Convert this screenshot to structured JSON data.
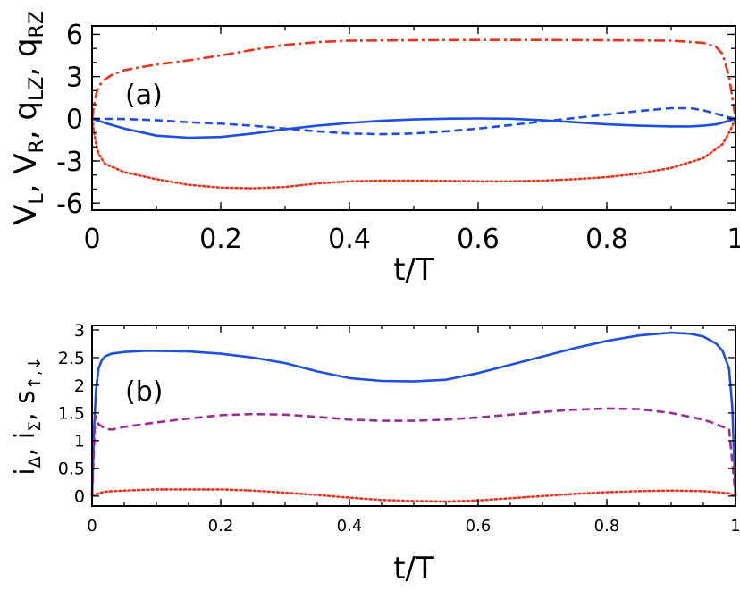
{
  "chart_data": [
    {
      "type": "line",
      "panel_label": "(a)",
      "xlabel": "t/T",
      "ylabel_parts": [
        "V",
        "L",
        ", V",
        "R",
        ", q",
        "LZ",
        ", q",
        "RZ"
      ],
      "xlim": [
        0,
        1
      ],
      "ylim": [
        -6.5,
        6.6
      ],
      "xticks": [
        0,
        0.2,
        0.4,
        0.6,
        0.8,
        1
      ],
      "xtick_labels": [
        "0",
        "0.2",
        "0.4",
        "0.6",
        "0.8",
        "1"
      ],
      "yticks": [
        -6,
        -3,
        0,
        3,
        6
      ],
      "ytick_labels": [
        "-6",
        "-3",
        "0",
        "3",
        "6"
      ],
      "series": [
        {
          "name": "red dash-dot (upper)",
          "color": "#e8341c",
          "style": "dashdot",
          "x": [
            0,
            0.005,
            0.01,
            0.02,
            0.03,
            0.05,
            0.08,
            0.1,
            0.15,
            0.2,
            0.25,
            0.3,
            0.35,
            0.4,
            0.5,
            0.6,
            0.7,
            0.8,
            0.9,
            0.95,
            0.97,
            0.98,
            0.99,
            0.995,
            1
          ],
          "y": [
            0,
            1.5,
            2.3,
            2.8,
            3.1,
            3.45,
            3.7,
            3.85,
            4.15,
            4.5,
            4.9,
            5.25,
            5.45,
            5.55,
            5.58,
            5.6,
            5.6,
            5.58,
            5.55,
            5.4,
            5.1,
            4.6,
            3.0,
            1.5,
            0
          ]
        },
        {
          "name": "red dotted (lower)",
          "color": "#e8341c",
          "style": "dotted",
          "x": [
            0,
            0.005,
            0.01,
            0.02,
            0.05,
            0.1,
            0.15,
            0.2,
            0.25,
            0.3,
            0.35,
            0.4,
            0.45,
            0.5,
            0.55,
            0.6,
            0.65,
            0.7,
            0.75,
            0.8,
            0.85,
            0.9,
            0.95,
            0.98,
            0.99,
            1
          ],
          "y": [
            0,
            -1.5,
            -2.5,
            -3.2,
            -3.8,
            -4.3,
            -4.7,
            -4.9,
            -4.95,
            -4.85,
            -4.6,
            -4.45,
            -4.4,
            -4.4,
            -4.42,
            -4.45,
            -4.45,
            -4.4,
            -4.3,
            -4.15,
            -3.9,
            -3.5,
            -2.8,
            -1.8,
            -1.0,
            0
          ]
        },
        {
          "name": "blue solid",
          "color": "#1f4fe0",
          "style": "solid",
          "x": [
            0,
            0.02,
            0.05,
            0.1,
            0.15,
            0.2,
            0.25,
            0.3,
            0.35,
            0.4,
            0.45,
            0.5,
            0.55,
            0.6,
            0.65,
            0.7,
            0.75,
            0.8,
            0.85,
            0.9,
            0.93,
            0.95,
            0.97,
            0.99,
            1
          ],
          "y": [
            0,
            -0.3,
            -0.7,
            -1.2,
            -1.35,
            -1.3,
            -1.05,
            -0.75,
            -0.5,
            -0.3,
            -0.15,
            -0.05,
            0,
            0.02,
            0,
            -0.1,
            -0.25,
            -0.4,
            -0.5,
            -0.55,
            -0.55,
            -0.5,
            -0.4,
            -0.15,
            0
          ]
        },
        {
          "name": "blue dashed",
          "color": "#1f4fe0",
          "style": "dashed",
          "x": [
            0,
            0.05,
            0.1,
            0.15,
            0.2,
            0.25,
            0.3,
            0.35,
            0.4,
            0.45,
            0.5,
            0.55,
            0.6,
            0.65,
            0.7,
            0.75,
            0.8,
            0.85,
            0.9,
            0.93,
            0.95,
            0.97,
            0.99,
            1
          ],
          "y": [
            0,
            -0.02,
            -0.1,
            -0.25,
            -0.35,
            -0.5,
            -0.7,
            -0.9,
            -1.05,
            -1.1,
            -1.05,
            -0.9,
            -0.7,
            -0.45,
            -0.2,
            0.05,
            0.3,
            0.55,
            0.75,
            0.75,
            0.6,
            0.35,
            0.1,
            0
          ]
        }
      ]
    },
    {
      "type": "line",
      "panel_label": "(b)",
      "xlabel": "t/T",
      "ylabel_parts": [
        "i",
        "Δ",
        ", i",
        "Σ",
        ", s",
        "↑,↓"
      ],
      "xlim": [
        0,
        1
      ],
      "ylim": [
        -0.18,
        3.08
      ],
      "xticks": [
        0,
        0.2,
        0.4,
        0.6,
        0.8,
        1
      ],
      "xtick_labels": [
        "0",
        "0.2",
        "0.4",
        "0.6",
        "0.8",
        "1"
      ],
      "yticks": [
        0,
        0.5,
        1,
        1.5,
        2,
        2.5,
        3
      ],
      "ytick_labels": [
        "0",
        "0.5",
        "1",
        "1.5",
        "2",
        "2.5",
        "3"
      ],
      "series": [
        {
          "name": "blue solid",
          "color": "#1f4fe0",
          "style": "solid",
          "x": [
            0,
            0.003,
            0.006,
            0.01,
            0.015,
            0.02,
            0.03,
            0.05,
            0.08,
            0.1,
            0.15,
            0.2,
            0.25,
            0.3,
            0.35,
            0.4,
            0.45,
            0.5,
            0.55,
            0.6,
            0.65,
            0.7,
            0.75,
            0.8,
            0.85,
            0.9,
            0.93,
            0.95,
            0.97,
            0.98,
            0.99,
            0.995,
            1
          ],
          "y": [
            0,
            1.2,
            1.9,
            2.3,
            2.45,
            2.52,
            2.57,
            2.6,
            2.62,
            2.62,
            2.61,
            2.57,
            2.5,
            2.4,
            2.25,
            2.13,
            2.08,
            2.07,
            2.1,
            2.22,
            2.37,
            2.52,
            2.67,
            2.8,
            2.9,
            2.95,
            2.93,
            2.88,
            2.75,
            2.62,
            2.3,
            1.6,
            0
          ]
        },
        {
          "name": "purple dashed",
          "color": "#9b2a9b",
          "style": "dashed",
          "x": [
            0,
            0.005,
            0.01,
            0.02,
            0.03,
            0.05,
            0.1,
            0.15,
            0.2,
            0.25,
            0.3,
            0.35,
            0.4,
            0.45,
            0.5,
            0.55,
            0.6,
            0.65,
            0.7,
            0.75,
            0.8,
            0.85,
            0.9,
            0.95,
            0.97,
            0.98,
            0.99,
            1
          ],
          "y": [
            0,
            1.45,
            1.3,
            1.22,
            1.2,
            1.25,
            1.33,
            1.4,
            1.46,
            1.48,
            1.47,
            1.43,
            1.38,
            1.36,
            1.36,
            1.38,
            1.42,
            1.47,
            1.52,
            1.56,
            1.58,
            1.57,
            1.5,
            1.38,
            1.3,
            1.25,
            1.22,
            0
          ]
        },
        {
          "name": "red dotted",
          "color": "#e8341c",
          "style": "dotted",
          "x": [
            0,
            0.01,
            0.02,
            0.05,
            0.1,
            0.15,
            0.2,
            0.25,
            0.3,
            0.35,
            0.4,
            0.45,
            0.5,
            0.55,
            0.6,
            0.65,
            0.7,
            0.75,
            0.8,
            0.85,
            0.9,
            0.95,
            0.99,
            1
          ],
          "y": [
            0,
            0.05,
            0.08,
            0.1,
            0.12,
            0.12,
            0.12,
            0.1,
            0.06,
            0.02,
            -0.03,
            -0.07,
            -0.09,
            -0.1,
            -0.08,
            -0.04,
            0,
            0.04,
            0.07,
            0.09,
            0.1,
            0.09,
            0.05,
            0
          ]
        }
      ]
    }
  ]
}
